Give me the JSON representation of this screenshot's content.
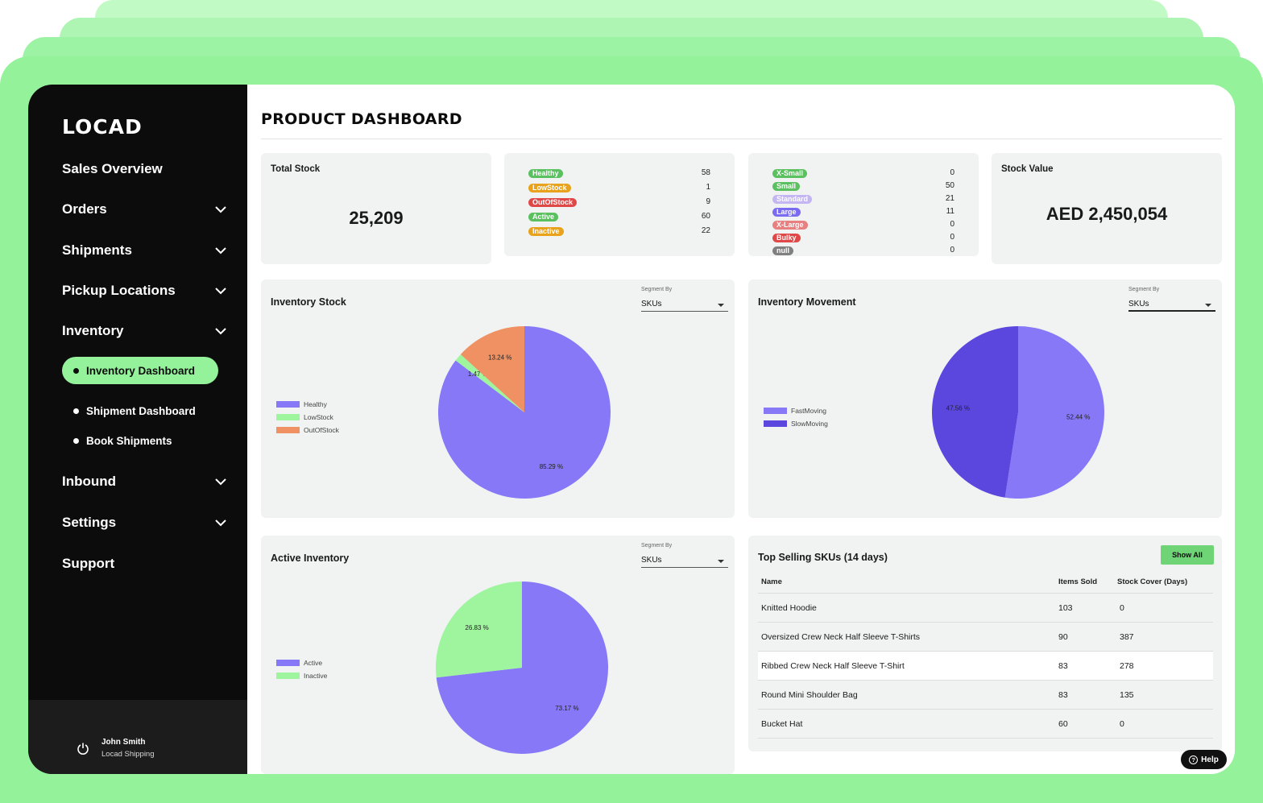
{
  "app": {
    "logo": "LOCAD",
    "page_title": "PRODUCT DASHBOARD"
  },
  "sidebar": {
    "items": [
      {
        "label": "Sales Overview",
        "expandable": false
      },
      {
        "label": "Orders",
        "expandable": true
      },
      {
        "label": "Shipments",
        "expandable": true
      },
      {
        "label": "Pickup Locations",
        "expandable": true
      },
      {
        "label": "Inventory",
        "expandable": true
      },
      {
        "label": "Inbound",
        "expandable": true
      },
      {
        "label": "Settings",
        "expandable": true
      },
      {
        "label": "Support",
        "expandable": false
      }
    ],
    "inventory_sub": [
      {
        "label": "Inventory Dashboard",
        "active": true
      },
      {
        "label": "Shipment Dashboard",
        "active": false
      },
      {
        "label": "Book Shipments",
        "active": false
      }
    ],
    "user": {
      "name": "John Smith",
      "org": "Locad Shipping"
    }
  },
  "total_stock": {
    "title": "Total Stock",
    "value": "25,209"
  },
  "stock_status": [
    {
      "label": "Healthy",
      "value": "58",
      "color": "#5bc05f"
    },
    {
      "label": "LowStock",
      "value": "1",
      "color": "#e8a21c"
    },
    {
      "label": "OutOfStock",
      "value": "9",
      "color": "#e04848"
    },
    {
      "label": "Active",
      "value": "60",
      "color": "#5bc05f"
    },
    {
      "label": "Inactive",
      "value": "22",
      "color": "#e8a21c"
    }
  ],
  "size_status": [
    {
      "label": "X-Small",
      "value": "0",
      "color": "#5bc05f"
    },
    {
      "label": "Small",
      "value": "50",
      "color": "#5bc05f"
    },
    {
      "label": "Standard",
      "value": "21",
      "color": "#c3b6f2"
    },
    {
      "label": "Large",
      "value": "11",
      "color": "#7a6cf0"
    },
    {
      "label": "X-Large",
      "value": "0",
      "color": "#e88080"
    },
    {
      "label": "Bulky",
      "value": "0",
      "color": "#e04848"
    },
    {
      "label": "null",
      "value": "0",
      "color": "#808080"
    }
  ],
  "stock_value": {
    "title": "Stock Value",
    "value": "AED 2,450,054"
  },
  "segment": {
    "label": "Segment By",
    "value": "SKUs"
  },
  "inventory_stock": {
    "title": "Inventory Stock",
    "legend": [
      "Healthy",
      "LowStock",
      "OutOfStock"
    ],
    "labels": [
      "85.29 %",
      "1.47 %",
      "13.24 %"
    ]
  },
  "inventory_movement": {
    "title": "Inventory Movement",
    "legend": [
      "FastMoving",
      "SlowMoving"
    ],
    "labels": [
      "52.44 %",
      "47.56 %"
    ]
  },
  "active_inventory": {
    "title": "Active Inventory",
    "legend": [
      "Active",
      "Inactive"
    ],
    "labels": [
      "73.17 %",
      "26.83 %"
    ]
  },
  "top_selling": {
    "title": "Top Selling SKUs (14 days)",
    "show_all": "Show All",
    "headers": [
      "Name",
      "Items Sold",
      "Stock Cover (Days)"
    ],
    "rows": [
      [
        "Knitted Hoodie",
        "103",
        "0"
      ],
      [
        "Oversized Crew Neck Half Sleeve T-Shirts",
        "90",
        "387"
      ],
      [
        "Ribbed Crew Neck Half Sleeve T-Shirt",
        "83",
        "278"
      ],
      [
        "Round Mini Shoulder Bag",
        "83",
        "135"
      ],
      [
        "Bucket Hat",
        "60",
        "0"
      ]
    ]
  },
  "help": "Help",
  "chart_data": [
    {
      "type": "pie",
      "title": "Inventory Stock",
      "categories": [
        "Healthy",
        "LowStock",
        "OutOfStock"
      ],
      "values": [
        85.29,
        1.47,
        13.24
      ],
      "colors": [
        "#8678f7",
        "#9ef59e",
        "#ef9162"
      ],
      "legend": "left"
    },
    {
      "type": "pie",
      "title": "Inventory Movement",
      "categories": [
        "FastMoving",
        "SlowMoving"
      ],
      "values": [
        52.44,
        47.56
      ],
      "colors": [
        "#8678f7",
        "#5b46de"
      ],
      "legend": "left"
    },
    {
      "type": "pie",
      "title": "Active Inventory",
      "categories": [
        "Active",
        "Inactive"
      ],
      "values": [
        73.17,
        26.83
      ],
      "colors": [
        "#8678f7",
        "#9ef59e"
      ],
      "legend": "left"
    }
  ]
}
